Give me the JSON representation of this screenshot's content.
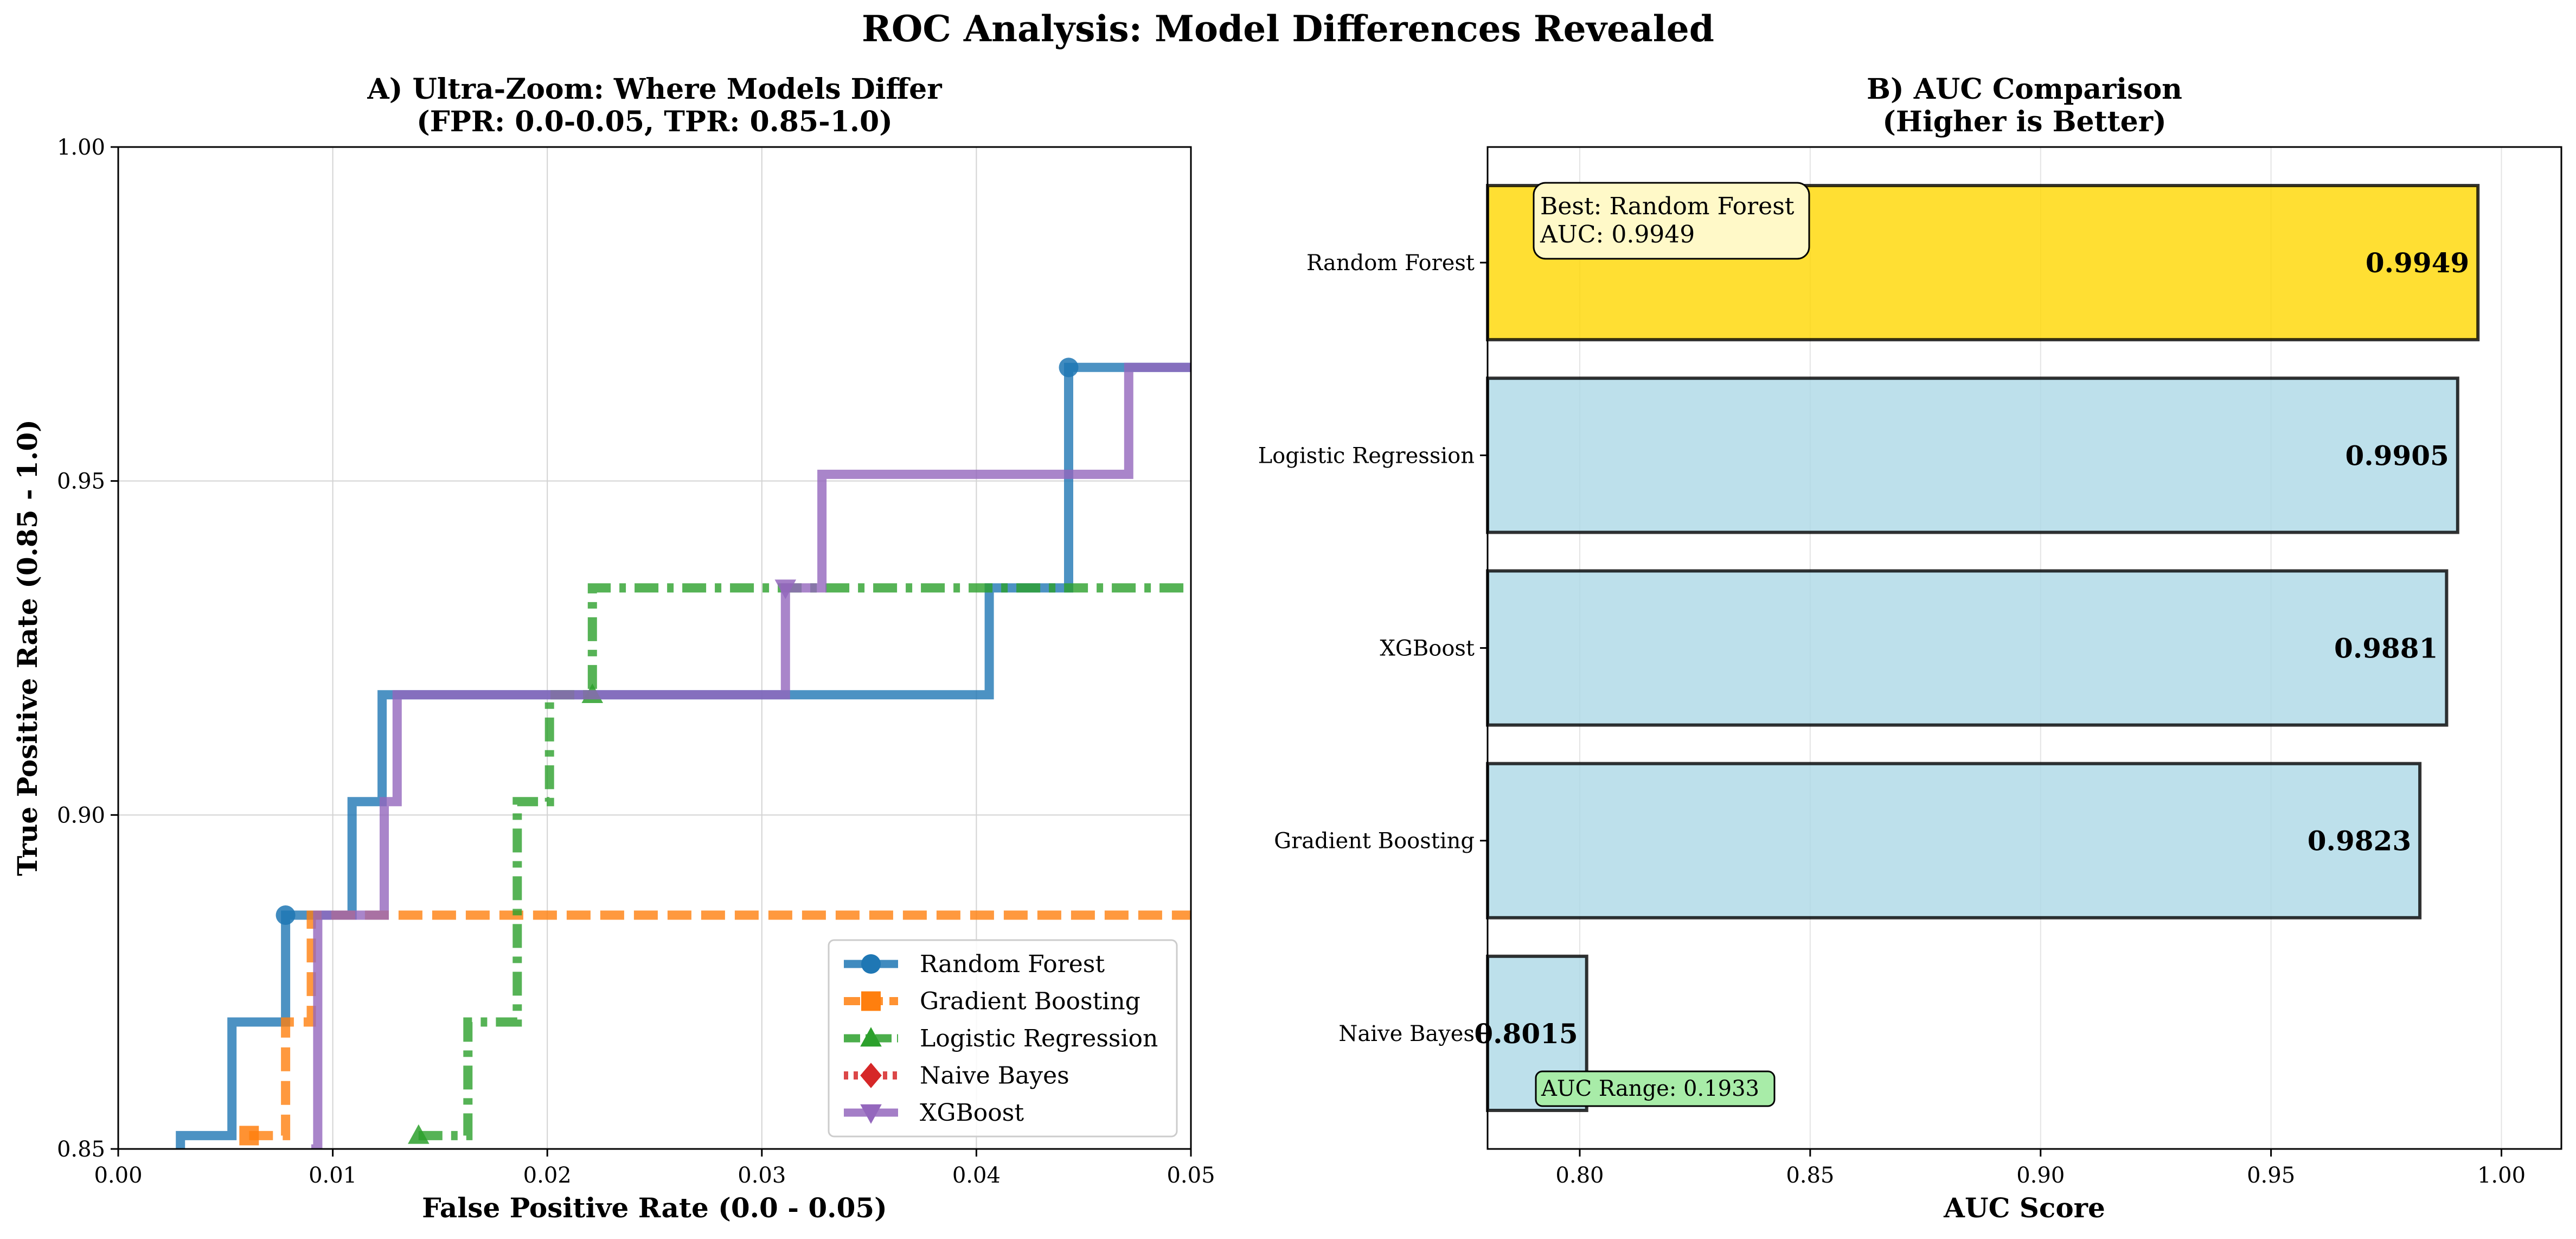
{
  "suptitle": "ROC Analysis: Model Differences Revealed",
  "chart_data": [
    {
      "type": "line",
      "title": "A) Ultra-Zoom: Where Models Differ\n(FPR: 0.0-0.05, TPR: 0.85-1.0)",
      "xlabel": "False Positive Rate (0.0 - 0.05)",
      "ylabel": "True Positive Rate (0.85 - 1.0)",
      "xlim": [
        0.0,
        0.05
      ],
      "ylim": [
        0.85,
        1.0
      ],
      "xticks": [
        "0.00",
        "0.01",
        "0.02",
        "0.03",
        "0.04",
        "0.05"
      ],
      "yticks": [
        "0.85",
        "0.90",
        "0.95",
        "1.00"
      ],
      "grid": true,
      "legend_position": "lower-right",
      "series": [
        {
          "name": "Random Forest",
          "color": "#1f77b4",
          "linestyle": "solid",
          "marker": "circle",
          "x": [
            0.0029,
            0.0029,
            0.0053,
            0.0053,
            0.0078,
            0.0078,
            0.0109,
            0.0109,
            0.0123,
            0.0123,
            0.0406,
            0.0406,
            0.0443,
            0.0443,
            0.05
          ],
          "y": [
            0.85,
            0.852,
            0.852,
            0.869,
            0.869,
            0.885,
            0.885,
            0.902,
            0.902,
            0.918,
            0.918,
            0.934,
            0.934,
            0.967,
            0.967
          ],
          "markers_at": [
            [
              0.0078,
              0.885
            ],
            [
              0.0443,
              0.967
            ]
          ]
        },
        {
          "name": "Gradient Boosting",
          "color": "#ff7f0e",
          "linestyle": "dashed",
          "marker": "square",
          "x": [
            0.0061,
            0.0078,
            0.0078,
            0.009,
            0.009,
            0.05
          ],
          "y": [
            0.852,
            0.852,
            0.869,
            0.869,
            0.885,
            0.885
          ],
          "markers_at": [
            [
              0.0061,
              0.852
            ]
          ]
        },
        {
          "name": "Logistic Regression",
          "color": "#2ca02c",
          "linestyle": "dashdot",
          "marker": "triangle",
          "x": [
            0.014,
            0.0163,
            0.0163,
            0.0186,
            0.0186,
            0.0201,
            0.0201,
            0.0221,
            0.0221,
            0.05
          ],
          "y": [
            0.852,
            0.852,
            0.869,
            0.869,
            0.902,
            0.902,
            0.918,
            0.918,
            0.934,
            0.934
          ],
          "markers_at": [
            [
              0.014,
              0.852
            ],
            [
              0.0221,
              0.918
            ]
          ]
        },
        {
          "name": "Naive Bayes",
          "color": "#d62728",
          "linestyle": "dotted",
          "marker": "diamond",
          "x": [],
          "y": [],
          "markers_at": []
        },
        {
          "name": "XGBoost",
          "color": "#9467bd",
          "linestyle": "solid",
          "marker": "triangle-down",
          "x": [
            0.009,
            0.0093,
            0.0093,
            0.0124,
            0.0124,
            0.013,
            0.013,
            0.0311,
            0.0311,
            0.0328,
            0.0328,
            0.0471,
            0.0471,
            0.05
          ],
          "y": [
            0.85,
            0.85,
            0.885,
            0.885,
            0.902,
            0.902,
            0.918,
            0.918,
            0.934,
            0.934,
            0.951,
            0.951,
            0.967,
            0.967
          ],
          "markers_at": [
            [
              0.0311,
              0.934
            ]
          ]
        }
      ]
    },
    {
      "type": "bar",
      "orientation": "horizontal",
      "title": "B) AUC Comparison\n(Higher is Better)",
      "xlabel": "AUC Score",
      "ylabel": "",
      "xlim": [
        0.78,
        1.013
      ],
      "xticks": [
        "0.80",
        "0.85",
        "0.90",
        "0.95",
        "1.00"
      ],
      "grid": true,
      "categories": [
        "Random Forest",
        "Logistic Regression",
        "XGBoost",
        "Gradient Boosting",
        "Naive Bayes"
      ],
      "values": [
        0.9949,
        0.9905,
        0.9881,
        0.9823,
        0.8015
      ],
      "value_labels": [
        "0.9949",
        "0.9905",
        "0.9881",
        "0.9823",
        "0.8015"
      ],
      "bar_colors": [
        "#ffd700",
        "#add8e6",
        "#add8e6",
        "#add8e6",
        "#add8e6"
      ],
      "annotations": {
        "best": "Best: Random Forest\nAUC: 0.9949",
        "range": "AUC Range: 0.1933"
      }
    }
  ]
}
